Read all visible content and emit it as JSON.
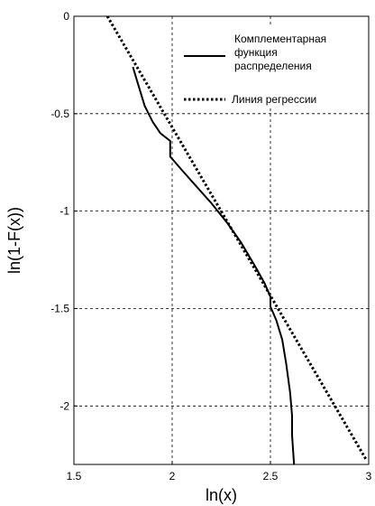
{
  "chart_data": {
    "type": "line",
    "xlabel": "ln(x)",
    "ylabel": "ln(1-F(x))",
    "xlim": [
      1.5,
      3
    ],
    "ylim": [
      -2.3,
      0
    ],
    "x_ticks": [
      "1.5",
      "2",
      "2.5",
      "3"
    ],
    "x_tick_values": [
      1.5,
      2,
      2.5,
      3
    ],
    "y_ticks": [
      "0",
      "-0.5",
      "-1",
      "-1.5",
      "-2"
    ],
    "y_tick_values": [
      0,
      -0.5,
      -1,
      -1.5,
      -2
    ],
    "grid": true,
    "legend_position": "top-right",
    "series": [
      {
        "name": "Комплементарная функция распределения",
        "style": "solid",
        "color": "#000000",
        "x": [
          1.8,
          1.83,
          1.86,
          1.9,
          1.94,
          1.99,
          1.99,
          2.05,
          2.12,
          2.2,
          2.28,
          2.35,
          2.42,
          2.47,
          2.5,
          2.5,
          2.53,
          2.56,
          2.58,
          2.6,
          2.61,
          2.61,
          2.62
        ],
        "y": [
          -0.26,
          -0.36,
          -0.46,
          -0.54,
          -0.6,
          -0.64,
          -0.72,
          -0.79,
          -0.87,
          -0.96,
          -1.06,
          -1.16,
          -1.28,
          -1.37,
          -1.44,
          -1.49,
          -1.56,
          -1.66,
          -1.78,
          -1.93,
          -2.05,
          -2.15,
          -2.3
        ]
      },
      {
        "name": "Линия регрессии",
        "style": "dotted",
        "color": "#000000",
        "x": [
          1.67,
          2.99
        ],
        "y": [
          0,
          -2.28
        ]
      }
    ],
    "legend": {
      "entries": [
        {
          "lines": [
            "Комплементарная",
            "функция",
            "распределения"
          ]
        },
        {
          "lines": [
            "Линия регрессии"
          ]
        }
      ]
    }
  }
}
